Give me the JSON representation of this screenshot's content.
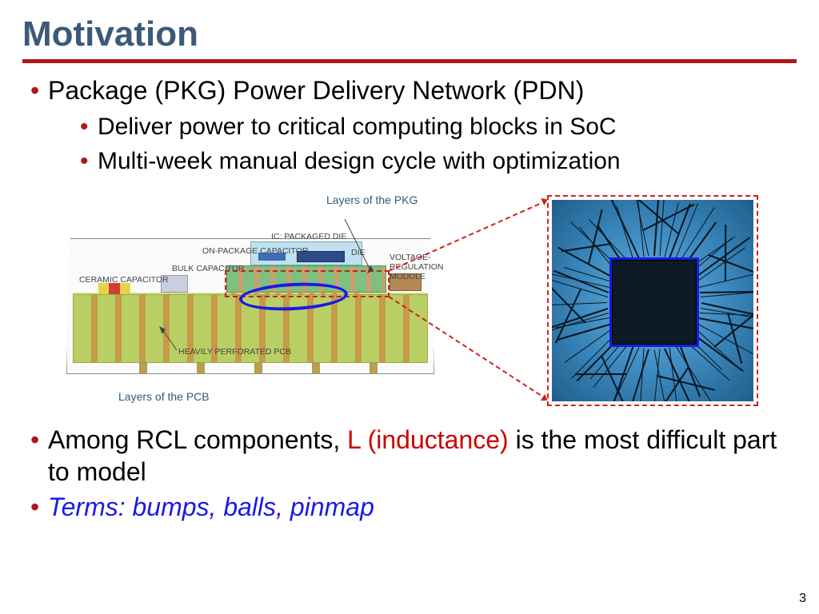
{
  "title": "Motivation",
  "colors": {
    "title": "#3c5a78",
    "rule": "#b01818",
    "bullet": "#b01818",
    "red_text": "#cc0000",
    "blue_text": "#1a1ae6",
    "background": "#ffffff"
  },
  "bullets": {
    "b1": "Package (PKG) Power Delivery Network (PDN)",
    "b1a": "Deliver power to critical computing blocks in SoC",
    "b1b": "Multi-week manual design cycle with optimization",
    "b2_pre": "Among RCL components, ",
    "b2_red": "L (inductance)",
    "b2_post": " is the most difficult part to model",
    "b3": "Terms: bumps, balls, pinmap"
  },
  "figure": {
    "caption_top": "Layers of the PKG",
    "caption_bottom": "Layers of the PCB",
    "labels": {
      "ceramic_cap": "CERAMIC CAPACITOR",
      "bulk_cap": "BULK CAPACITOR",
      "onpkg_cap": "ON-PACKAGE CAPACITOR",
      "ic_pkg_die": "IC: PACKAGED DIE",
      "die": "DIE",
      "vrm1": "VOLTAGE-",
      "vrm2": "REGULATION",
      "vrm3": "MODULE",
      "pcb": "HEAVILY PERFORATED PCB"
    },
    "callout_colors": {
      "ellipse": "#1a1ae6",
      "dashed": "#d02020"
    },
    "chip": {
      "bg_gradient": [
        "#6ab4e1",
        "#3a86bb",
        "#1f5e8a"
      ],
      "core_border": "#1a1ae6",
      "core_fill": "#0c1a26",
      "trace_color": "#08151f"
    }
  },
  "page_number": "3",
  "typography": {
    "title_fontsize_pt": 33,
    "body_fontsize_pt": 24,
    "sub_fontsize_pt": 22
  }
}
